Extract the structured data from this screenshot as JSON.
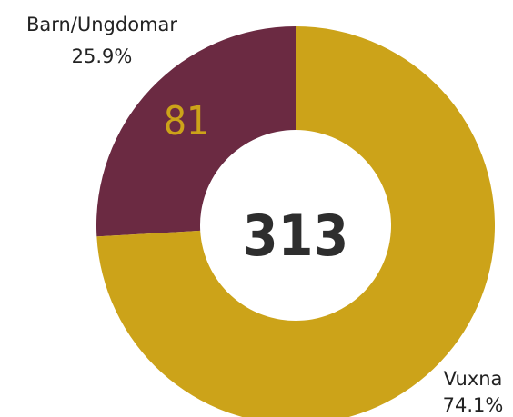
{
  "chart_data": {
    "type": "donut",
    "categories": [
      "Barn/Ungdomar",
      "Vuxna"
    ],
    "values": [
      25.9,
      74.1
    ],
    "value_labels": [
      "25.9%",
      "74.1%"
    ],
    "colors": [
      "#6b2a42",
      "#cca319"
    ],
    "counts": [
      81,
      null
    ],
    "total": 313
  }
}
